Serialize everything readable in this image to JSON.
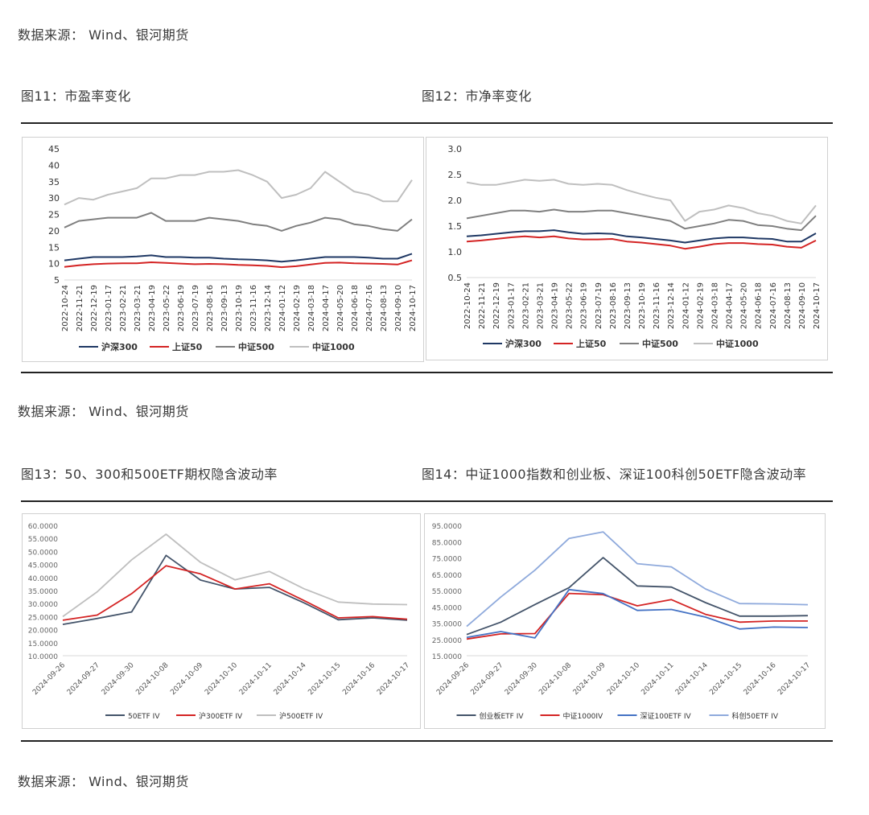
{
  "sources": {
    "top": "数据来源：  Wind、银河期货",
    "middle": "数据来源：  Wind、银河期货",
    "bottom": "数据来源：  Wind、银河期货"
  },
  "figures": {
    "fig11": "图11：市盈率变化",
    "fig12": "图12：市净率变化",
    "fig13": "图13：50、300和500ETF期权隐含波动率",
    "fig14": "图14：中证1000指数和创业板、深证100科创50ETF隐含波动率"
  },
  "chart_data": [
    {
      "id": "pe",
      "type": "line",
      "ylim": [
        5,
        45
      ],
      "yticks": [
        5,
        10,
        15,
        20,
        25,
        30,
        35,
        40,
        45
      ],
      "x": [
        "2022-10-24",
        "2022-11-21",
        "2022-12-19",
        "2023-01-17",
        "2023-02-21",
        "2023-03-21",
        "2023-04-19",
        "2023-05-22",
        "2023-06-19",
        "2023-07-19",
        "2023-08-16",
        "2023-09-13",
        "2023-10-19",
        "2023-11-16",
        "2023-12-14",
        "2024-01-12",
        "2024-02-19",
        "2024-03-18",
        "2024-04-17",
        "2024-05-20",
        "2024-06-18",
        "2024-07-16",
        "2024-08-13",
        "2024-09-10",
        "2024-10-17"
      ],
      "series": [
        {
          "name": "沪深300",
          "color": "#1f3864",
          "values": [
            11,
            11.5,
            12,
            12,
            12,
            12.2,
            12.5,
            12,
            12,
            11.8,
            11.8,
            11.5,
            11.3,
            11.2,
            11,
            10.6,
            11,
            11.5,
            12,
            12,
            12,
            11.8,
            11.5,
            11.5,
            13
          ]
        },
        {
          "name": "上证50",
          "color": "#d42424",
          "values": [
            9,
            9.5,
            9.8,
            10,
            10.1,
            10.1,
            10.4,
            10.2,
            10,
            9.8,
            9.9,
            9.8,
            9.6,
            9.5,
            9.3,
            8.9,
            9.2,
            9.7,
            10.2,
            10.3,
            10.1,
            10,
            9.9,
            9.7,
            11
          ]
        },
        {
          "name": "中证500",
          "color": "#7f7f7f",
          "values": [
            21,
            23,
            23.5,
            24,
            24,
            24,
            25.5,
            23,
            23,
            23,
            24,
            23.5,
            23,
            22,
            21.5,
            20,
            21.5,
            22.5,
            24,
            23.5,
            22,
            21.5,
            20.5,
            20,
            23.5
          ]
        },
        {
          "name": "中证1000",
          "color": "#bfbfbf",
          "values": [
            28,
            30,
            29.5,
            31,
            32,
            33,
            36,
            36,
            37,
            37,
            38,
            38,
            38.5,
            37,
            35,
            30,
            31,
            33,
            38,
            35,
            32,
            31,
            29,
            29,
            35.5
          ]
        }
      ]
    },
    {
      "id": "pb",
      "type": "line",
      "ylim": [
        0.5,
        3.0
      ],
      "yticks": [
        "0.5",
        "1.0",
        "1.5",
        "2.0",
        "2.5",
        "3.0"
      ],
      "x": [
        "2022-10-24",
        "2022-11-21",
        "2022-12-19",
        "2023-01-17",
        "2023-02-21",
        "2023-03-21",
        "2023-04-19",
        "2023-05-22",
        "2023-06-19",
        "2023-07-19",
        "2023-08-16",
        "2023-09-13",
        "2023-10-19",
        "2023-11-16",
        "2023-12-14",
        "2024-01-12",
        "2024-02-19",
        "2024-03-18",
        "2024-04-17",
        "2024-05-20",
        "2024-06-18",
        "2024-07-16",
        "2024-08-13",
        "2024-09-10",
        "2024-10-17"
      ],
      "series": [
        {
          "name": "沪深300",
          "color": "#1f3864",
          "values": [
            1.3,
            1.32,
            1.35,
            1.38,
            1.4,
            1.4,
            1.42,
            1.38,
            1.35,
            1.36,
            1.35,
            1.3,
            1.28,
            1.25,
            1.22,
            1.18,
            1.22,
            1.26,
            1.28,
            1.28,
            1.26,
            1.25,
            1.2,
            1.2,
            1.36
          ]
        },
        {
          "name": "上证50",
          "color": "#d42424",
          "values": [
            1.2,
            1.22,
            1.25,
            1.28,
            1.3,
            1.28,
            1.3,
            1.26,
            1.24,
            1.24,
            1.25,
            1.2,
            1.18,
            1.15,
            1.12,
            1.06,
            1.1,
            1.15,
            1.17,
            1.17,
            1.15,
            1.14,
            1.1,
            1.08,
            1.22
          ]
        },
        {
          "name": "中证500",
          "color": "#7f7f7f",
          "values": [
            1.65,
            1.7,
            1.75,
            1.8,
            1.8,
            1.78,
            1.82,
            1.78,
            1.78,
            1.8,
            1.8,
            1.75,
            1.7,
            1.65,
            1.6,
            1.45,
            1.5,
            1.55,
            1.62,
            1.6,
            1.52,
            1.5,
            1.45,
            1.42,
            1.7
          ]
        },
        {
          "name": "中证1000",
          "color": "#bfbfbf",
          "values": [
            2.35,
            2.3,
            2.3,
            2.35,
            2.4,
            2.38,
            2.4,
            2.32,
            2.3,
            2.32,
            2.3,
            2.2,
            2.12,
            2.05,
            2.0,
            1.6,
            1.78,
            1.82,
            1.9,
            1.85,
            1.75,
            1.7,
            1.6,
            1.55,
            1.9
          ]
        }
      ]
    },
    {
      "id": "iv1",
      "type": "line",
      "ylim": [
        10,
        60
      ],
      "yticks": [
        "10.0000",
        "15.0000",
        "20.0000",
        "25.0000",
        "30.0000",
        "35.0000",
        "40.0000",
        "45.0000",
        "50.0000",
        "55.0000",
        "60.0000"
      ],
      "x": [
        "2024-09-26",
        "2024-09-27",
        "2024-09-30",
        "2024-10-08",
        "2024-10-09",
        "2024-10-10",
        "2024-10-11",
        "2024-10-14",
        "2024-10-15",
        "2024-10-16",
        "2024-10-17"
      ],
      "series": [
        {
          "name": "50ETF IV",
          "color": "#44546a",
          "values": [
            22,
            24.3,
            26.8,
            48.5,
            39,
            35.6,
            36.2,
            30.3,
            23.8,
            24.5,
            23.6
          ]
        },
        {
          "name": "沪300ETF IV",
          "color": "#d42424",
          "values": [
            23.6,
            25.6,
            33.8,
            44.5,
            41.4,
            35.6,
            37.6,
            31.2,
            24.5,
            25,
            24
          ]
        },
        {
          "name": "沪500ETF IV",
          "color": "#bfbfbf",
          "values": [
            25,
            34.5,
            46.8,
            56.6,
            45.8,
            39.1,
            42.3,
            35.7,
            30.6,
            29.8,
            29.6
          ]
        }
      ]
    },
    {
      "id": "iv2",
      "type": "line",
      "ylim": [
        15,
        95
      ],
      "yticks": [
        "15.0000",
        "25.0000",
        "35.0000",
        "45.0000",
        "55.0000",
        "65.0000",
        "75.0000",
        "85.0000",
        "95.0000"
      ],
      "x": [
        "2024-09-26",
        "2024-09-27",
        "2024-09-30",
        "2024-10-08",
        "2024-10-09",
        "2024-10-10",
        "2024-10-11",
        "2024-10-14",
        "2024-10-15",
        "2024-10-16",
        "2024-10-17"
      ],
      "series": [
        {
          "name": "创业板ETF IV",
          "color": "#44546a",
          "values": [
            28,
            35.6,
            46.4,
            56.8,
            75.2,
            57.8,
            57.1,
            47.6,
            39.3,
            39.3,
            39.6
          ]
        },
        {
          "name": "中证1000IV",
          "color": "#d42424",
          "values": [
            25.2,
            28.4,
            28.6,
            53.2,
            52.5,
            45.6,
            49.4,
            40.4,
            35.6,
            36.3,
            36.3
          ]
        },
        {
          "name": "深证100ETF IV",
          "color": "#4472c4",
          "values": [
            26.2,
            29.8,
            25.9,
            55.6,
            53.1,
            42.8,
            43.4,
            38.7,
            31.4,
            32.6,
            32.3
          ]
        },
        {
          "name": "科创50ETF IV",
          "color": "#8faadc",
          "values": [
            33,
            51,
            67.5,
            87,
            91,
            71.5,
            69.5,
            56,
            47,
            46.8,
            46.3
          ]
        }
      ]
    }
  ]
}
